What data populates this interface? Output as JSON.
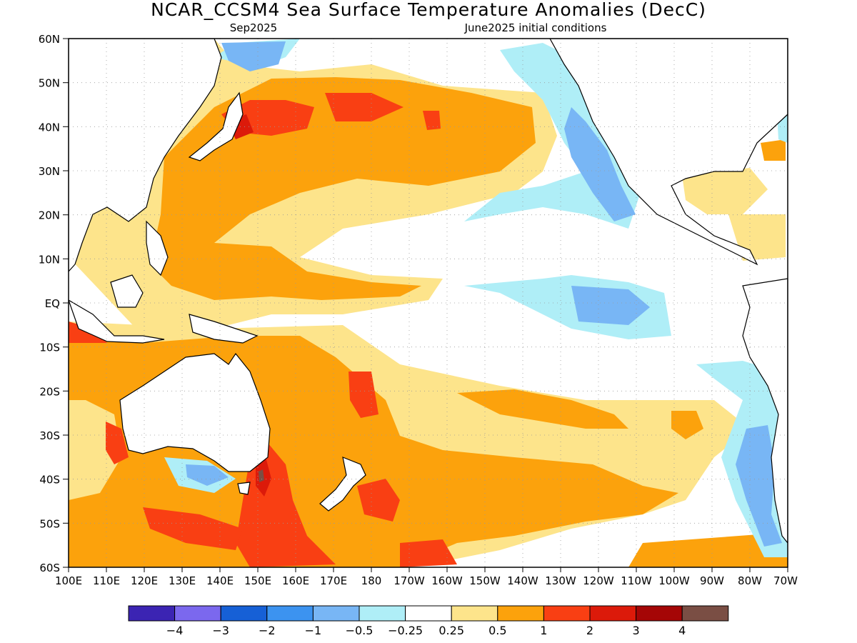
{
  "title": "NCAR_CCSM4 Sea Surface Temperature Anomalies (DecC)",
  "subtitle_left": "Sep2025",
  "subtitle_right": "June2025 initial conditions",
  "lat_labels": [
    "60N",
    "50N",
    "40N",
    "30N",
    "20N",
    "10N",
    "EQ",
    "10S",
    "20S",
    "30S",
    "40S",
    "50S",
    "60S"
  ],
  "lon_labels": [
    "100E",
    "110E",
    "120E",
    "130E",
    "140E",
    "150E",
    "160E",
    "170E",
    "180",
    "170W",
    "160W",
    "150W",
    "140W",
    "130W",
    "120W",
    "110W",
    "100W",
    "90W",
    "80W",
    "70W"
  ],
  "colorbar": {
    "colors": [
      "#3b24b3",
      "#7b68ee",
      "#1660d6",
      "#3c93f0",
      "#78b6f5",
      "#afeef7",
      "#ffffff",
      "#fde48b",
      "#fca20c",
      "#f93f13",
      "#dc1a0a",
      "#a50606",
      "#7a4e44"
    ],
    "labels": [
      "−4",
      "−3",
      "−2",
      "−1",
      "−0.5",
      "−0.25",
      "0.25",
      "0.5",
      "1",
      "2",
      "3",
      "4"
    ]
  },
  "map_colors": {
    "ocean": "#ffffff",
    "land": "#ffffff",
    "coast": "#000000",
    "grid": "#9a9a9a"
  }
}
